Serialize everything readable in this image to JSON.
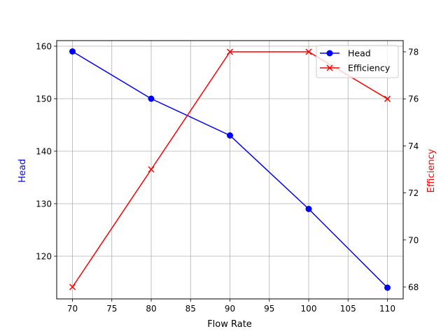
{
  "chart_data": {
    "type": "line",
    "title": "",
    "xlabel": "Flow Rate",
    "ylabel": "Head",
    "ylabel_right": "Efficiency",
    "x": [
      70,
      80,
      90,
      100,
      110
    ],
    "series": [
      {
        "name": "Head",
        "axis": "left",
        "values": [
          159,
          150,
          143,
          129,
          114
        ],
        "color": "#0000ff",
        "marker": "circle"
      },
      {
        "name": "Efficiency",
        "axis": "right",
        "values": [
          68,
          73,
          78,
          78,
          76
        ],
        "color": "#ff0000",
        "marker": "x"
      }
    ],
    "xlim": [
      68,
      112
    ],
    "ylim": [
      112.25,
      161
    ],
    "ylim_right": [
      67.5,
      78.5
    ],
    "x_ticks": [
      70,
      75,
      80,
      85,
      90,
      95,
      100,
      105,
      110
    ],
    "y_ticks": [
      120,
      130,
      140,
      150,
      160
    ],
    "y_ticks_right": [
      68,
      70,
      72,
      74,
      76,
      78
    ],
    "grid": true,
    "legend_position": "upper right"
  },
  "legend": {
    "items": [
      {
        "label": "Head",
        "color": "#0000ff",
        "marker": "circle"
      },
      {
        "label": "Efficiency",
        "color": "#ff0000",
        "marker": "x"
      }
    ]
  }
}
